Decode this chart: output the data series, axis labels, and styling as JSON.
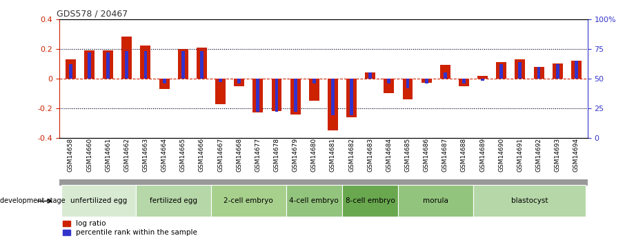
{
  "title": "GDS578 / 20467",
  "samples": [
    "GSM14658",
    "GSM14660",
    "GSM14661",
    "GSM14662",
    "GSM14663",
    "GSM14664",
    "GSM14665",
    "GSM14666",
    "GSM14667",
    "GSM14668",
    "GSM14677",
    "GSM14678",
    "GSM14679",
    "GSM14680",
    "GSM14681",
    "GSM14682",
    "GSM14683",
    "GSM14684",
    "GSM14685",
    "GSM14686",
    "GSM14687",
    "GSM14688",
    "GSM14689",
    "GSM14690",
    "GSM14691",
    "GSM14692",
    "GSM14693",
    "GSM14694"
  ],
  "log_ratio": [
    0.13,
    0.19,
    0.19,
    0.28,
    0.22,
    -0.07,
    0.2,
    0.21,
    -0.17,
    -0.05,
    -0.23,
    -0.22,
    -0.24,
    -0.15,
    -0.35,
    -0.26,
    0.04,
    -0.1,
    -0.14,
    -0.03,
    0.09,
    -0.05,
    0.02,
    0.11,
    0.13,
    0.08,
    0.1,
    0.12
  ],
  "percentile": [
    62,
    72,
    72,
    73,
    73,
    46,
    73,
    73,
    47,
    46,
    22,
    22,
    22,
    46,
    19,
    19,
    55,
    46,
    42,
    46,
    55,
    46,
    48,
    62,
    64,
    60,
    62,
    65
  ],
  "groups": [
    {
      "label": "unfertilized egg",
      "start": 0,
      "end": 4
    },
    {
      "label": "fertilized egg",
      "start": 4,
      "end": 8
    },
    {
      "label": "2-cell embryo",
      "start": 8,
      "end": 12
    },
    {
      "label": "4-cell embryo",
      "start": 12,
      "end": 15
    },
    {
      "label": "8-cell embryo",
      "start": 15,
      "end": 18
    },
    {
      "label": "morula",
      "start": 18,
      "end": 22
    },
    {
      "label": "blastocyst",
      "start": 22,
      "end": 28
    }
  ],
  "group_colors": [
    "#d9ead3",
    "#b6d7a8",
    "#93c47d",
    "#6aa84f",
    "#38761d",
    "#93c47d",
    "#6aa84f"
  ],
  "group_colors2": [
    "#e2f0d9",
    "#c6e0b4",
    "#a9d18e",
    "#70ad47",
    "#375623",
    "#a9d18e",
    "#70ad47"
  ],
  "bar_color_red": "#cc2200",
  "bar_color_blue": "#3333cc",
  "ylim_left": [
    -0.4,
    0.4
  ],
  "ylim_right": [
    0,
    100
  ],
  "axis_left_color": "#cc2200",
  "axis_right_color": "#3333cc",
  "title_color": "#333333"
}
